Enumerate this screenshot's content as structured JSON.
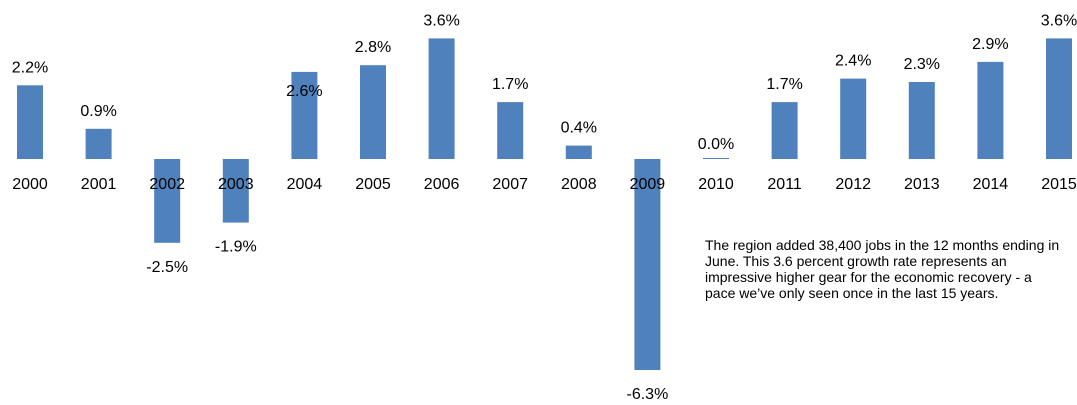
{
  "chart_data": {
    "type": "bar",
    "categories": [
      "2000",
      "2001",
      "2002",
      "2003",
      "2004",
      "2005",
      "2006",
      "2007",
      "2008",
      "2009",
      "2010",
      "2011",
      "2012",
      "2013",
      "2014",
      "2015"
    ],
    "values": [
      2.2,
      0.9,
      -2.5,
      -1.9,
      2.6,
      2.8,
      3.6,
      1.7,
      0.4,
      -6.3,
      0.0,
      1.7,
      2.4,
      2.3,
      2.9,
      3.6
    ],
    "data_labels": [
      "2.2%",
      "0.9%",
      "-2.5%",
      "-1.9%",
      "2.6%",
      "2.8%",
      "3.6%",
      "1.7%",
      "0.4%",
      "-6.3%",
      "0.0%",
      "1.7%",
      "2.4%",
      "2.3%",
      "2.9%",
      "3.6%"
    ],
    "title": "",
    "xlabel": "",
    "ylabel": "",
    "ylim": [
      -6.3,
      3.6
    ],
    "grid": false,
    "legend": "none",
    "bar_color": "#4f81bd"
  },
  "annotation": "The region added 38,400 jobs in the 12 months ending in June. This 3.6 percent growth rate represents an impressive higher gear for the economic recovery - a  pace we’ve only seen once in the last 15 years."
}
